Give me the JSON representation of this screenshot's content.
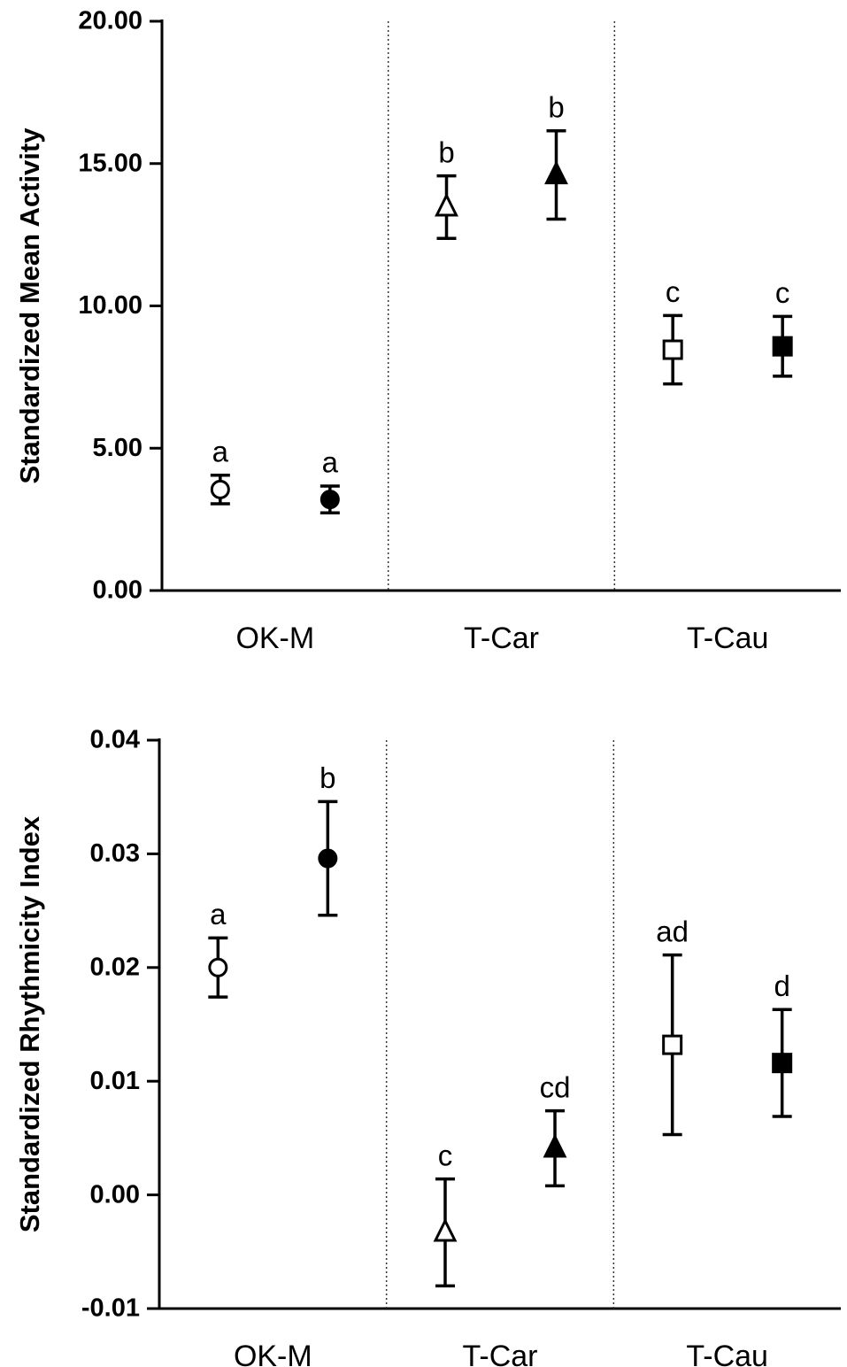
{
  "chart_data": [
    {
      "type": "errorbar",
      "y_label": "Standardized Mean Activity",
      "categories": [
        "OK-M",
        "T-Car",
        "T-Cau"
      ],
      "markers": [
        "circle",
        "triangle",
        "square"
      ],
      "ylim": [
        0,
        20
      ],
      "yticks": [
        {
          "value": 0,
          "label": "0.00"
        },
        {
          "value": 5,
          "label": "5.00"
        },
        {
          "value": 10,
          "label": "10.00"
        },
        {
          "value": 15,
          "label": "15.00"
        },
        {
          "value": 20,
          "label": "20.00"
        }
      ],
      "series": [
        {
          "color": "#000000",
          "filled": false,
          "values": [
            3.55,
            13.47,
            8.46
          ],
          "errors": [
            0.5,
            1.1,
            1.2
          ],
          "annotations": [
            "a",
            "b",
            "c"
          ]
        },
        {
          "color": "#000000",
          "filled": true,
          "values": [
            3.2,
            14.6,
            8.58
          ],
          "errors": [
            0.47,
            1.55,
            1.05
          ],
          "annotations": [
            "a",
            "b",
            "c"
          ]
        }
      ]
    },
    {
      "type": "errorbar",
      "y_label": "Standardized Rhythmicity Index",
      "categories": [
        "OK-M",
        "T-Car",
        "T-Cau"
      ],
      "markers": [
        "circle",
        "triangle",
        "square"
      ],
      "ylim": [
        -0.01,
        0.04
      ],
      "yticks": [
        -0.01,
        {
          "value": 0,
          "label": "0.00"
        },
        0.01,
        0.02,
        0.03,
        0.04
      ],
      "series": [
        {
          "color": "#000000",
          "filled": false,
          "values": [
            0.02,
            -0.0033,
            0.0132
          ],
          "errors": [
            0.0026,
            0.0047,
            0.0079
          ],
          "annotations": [
            "a",
            "c",
            "ad"
          ]
        },
        {
          "color": "#000000",
          "filled": true,
          "values": [
            0.0296,
            0.0041,
            0.0116
          ],
          "errors": [
            0.005,
            0.0033,
            0.0047
          ],
          "annotations": [
            "b",
            "cd",
            "d"
          ]
        }
      ]
    }
  ]
}
